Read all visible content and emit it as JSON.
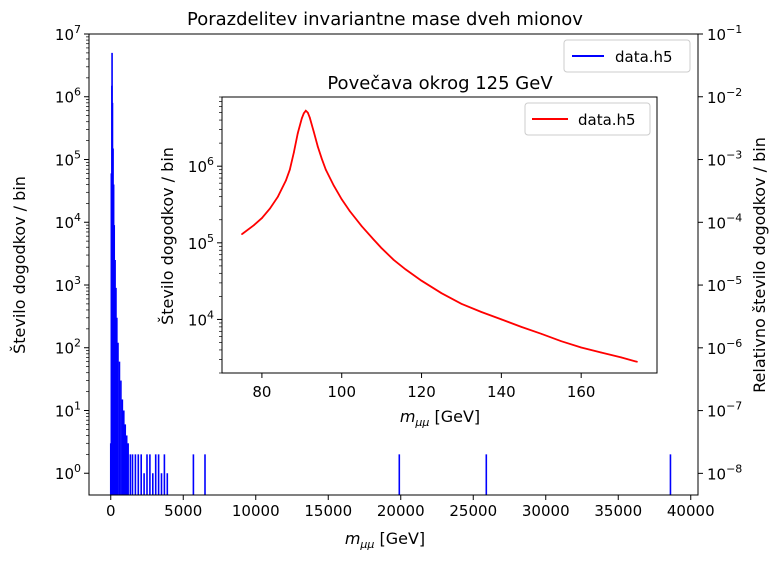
{
  "chart_data": [
    {
      "type": "histogram",
      "title": "Porazdelitev invariantne mase dveh mionov",
      "xlabel": "m_μμ [GeV]",
      "ylabel": "Število dogodkov / bin",
      "ylabel_right": "Relativno število dogodkov / bin",
      "xlim": [
        -1500,
        40500
      ],
      "ylim": [
        0.45,
        10000000
      ],
      "yscale": "log",
      "ylim_right": [
        4.52e-09,
        0.1
      ],
      "yscale_right": "log",
      "grid": false,
      "legend_location": "upper right",
      "color": "#0000ff",
      "series": [
        {
          "name": "data.h5"
        }
      ],
      "xticks": [
        "0",
        "5000",
        "10000",
        "15000",
        "20000",
        "25000",
        "30000",
        "35000",
        "40000"
      ],
      "xtick_values": [
        0,
        5000,
        10000,
        15000,
        20000,
        25000,
        30000,
        35000,
        40000
      ],
      "yticks": [
        {
          "base": "10",
          "exp": "0",
          "value": 1
        },
        {
          "base": "10",
          "exp": "1",
          "value": 10
        },
        {
          "base": "10",
          "exp": "2",
          "value": 100
        },
        {
          "base": "10",
          "exp": "3",
          "value": 1000
        },
        {
          "base": "10",
          "exp": "4",
          "value": 10000
        },
        {
          "base": "10",
          "exp": "5",
          "value": 100000
        },
        {
          "base": "10",
          "exp": "6",
          "value": 1000000
        },
        {
          "base": "10",
          "exp": "7",
          "value": 10000000
        }
      ],
      "yticks_right": [
        {
          "base": "10",
          "exp": "−8",
          "value": 1e-08
        },
        {
          "base": "10",
          "exp": "−7",
          "value": 1e-07
        },
        {
          "base": "10",
          "exp": "−6",
          "value": 1e-06
        },
        {
          "base": "10",
          "exp": "−5",
          "value": 1e-05
        },
        {
          "base": "10",
          "exp": "−4",
          "value": 0.0001
        },
        {
          "base": "10",
          "exp": "−3",
          "value": 0.001
        },
        {
          "base": "10",
          "exp": "−2",
          "value": 0.01
        },
        {
          "base": "10",
          "exp": "−1",
          "value": 0.1
        }
      ],
      "bins": {
        "x": [
          0,
          40,
          80,
          91,
          120,
          160,
          200,
          240,
          300,
          360,
          420,
          500,
          600,
          700,
          800,
          900,
          1000,
          1100,
          1200,
          1350,
          1500,
          1700,
          1900,
          2100,
          2300,
          2500,
          2700,
          2900,
          3100,
          3300,
          3500,
          3700,
          3900,
          5700,
          6500,
          19900,
          25900,
          38600
        ],
        "y": [
          3,
          60000,
          1500000,
          5000000,
          800000,
          150000,
          40000,
          9000,
          2500,
          900,
          300,
          120,
          60,
          30,
          15,
          10,
          6,
          4,
          3,
          2,
          2,
          2,
          2,
          2,
          1,
          2,
          2,
          1,
          2,
          2,
          1,
          2,
          1,
          2,
          2,
          2,
          2,
          2
        ]
      }
    },
    {
      "type": "histogram",
      "title": "Povečava okrog 125 GeV",
      "xlabel": "m_μμ [GeV]",
      "ylabel": "Število dogodkov / bin",
      "xlim": [
        70,
        179
      ],
      "ylim": [
        2000,
        8000000
      ],
      "yscale": "log",
      "grid": false,
      "legend_location": "upper right",
      "color": "#ff0000",
      "series": [
        {
          "name": "data.h5"
        }
      ],
      "xticks": [
        "80",
        "100",
        "120",
        "140",
        "160"
      ],
      "xtick_values": [
        80,
        100,
        120,
        140,
        160
      ],
      "yticks": [
        {
          "base": "10",
          "exp": "4",
          "value": 10000
        },
        {
          "base": "10",
          "exp": "5",
          "value": 100000
        },
        {
          "base": "10",
          "exp": "6",
          "value": 1000000
        }
      ],
      "curve": {
        "x": [
          75,
          78,
          80,
          82,
          84,
          86,
          87,
          88,
          89,
          90,
          90.5,
          91,
          91.5,
          92,
          93,
          94,
          95,
          96,
          98,
          100,
          102,
          105,
          108,
          110,
          113,
          116,
          120,
          125,
          130,
          135,
          140,
          145,
          150,
          155,
          160,
          165,
          170,
          174
        ],
        "y": [
          130000,
          170000,
          210000,
          280000,
          400000,
          650000,
          900000,
          1500000,
          2700000,
          4200000,
          4900000,
          5300000,
          5000000,
          4300000,
          2800000,
          1800000,
          1250000,
          900000,
          560000,
          370000,
          260000,
          165000,
          110000,
          85000,
          60000,
          45000,
          32000,
          22000,
          16000,
          12500,
          10000,
          8000,
          6500,
          5200,
          4300,
          3700,
          3200,
          2800
        ]
      }
    }
  ]
}
